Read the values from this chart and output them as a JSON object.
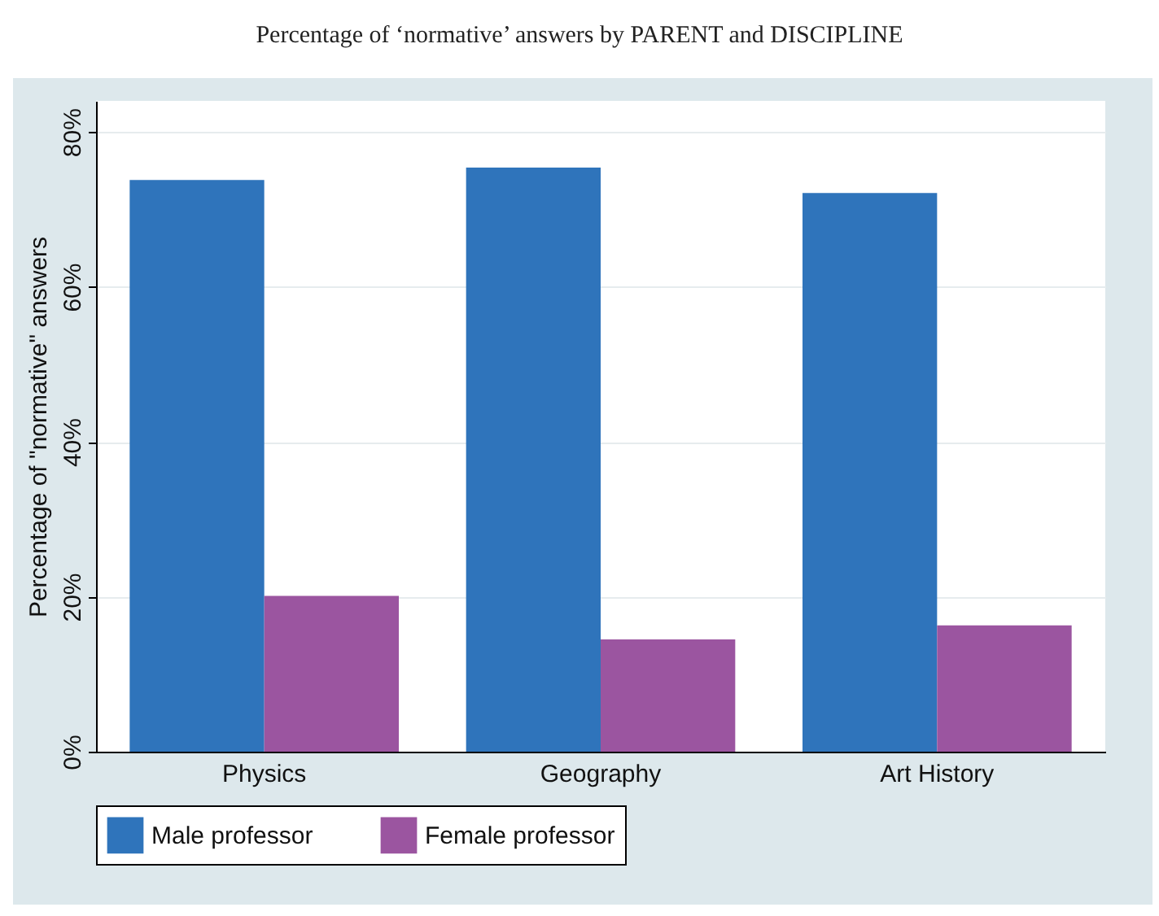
{
  "chart_data": {
    "type": "bar",
    "title": "Percentage of ‘normative’ answers by PARENT and DISCIPLINE",
    "ylabel": "Percentage of \"normative\" answers",
    "categories": [
      "Physics",
      "Geography",
      "Art History"
    ],
    "series": [
      {
        "name": "Male professor",
        "color": "#2f74bb",
        "values": [
          73.8,
          75.4,
          72.1
        ]
      },
      {
        "name": "Female professor",
        "color": "#9b55a0",
        "values": [
          20.1,
          14.5,
          16.3
        ]
      }
    ],
    "ylim": [
      0,
      84
    ],
    "yticks": [
      {
        "value": 0,
        "label": "0%"
      },
      {
        "value": 20,
        "label": "20%"
      },
      {
        "value": 40,
        "label": "40%"
      },
      {
        "value": 60,
        "label": "60%"
      },
      {
        "value": 80,
        "label": "80%"
      }
    ],
    "grid": "y",
    "legend": "bottom"
  }
}
